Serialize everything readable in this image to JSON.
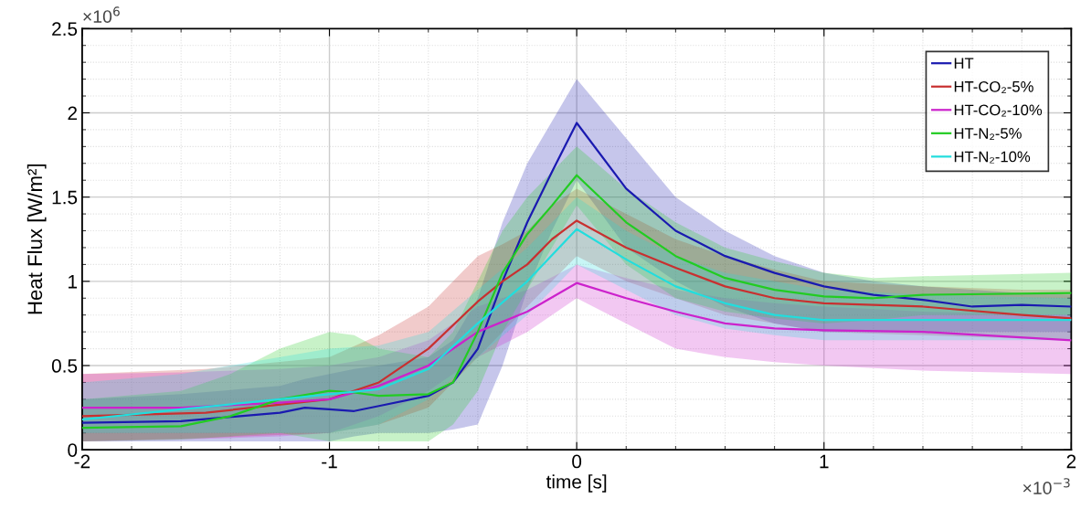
{
  "chart_data": {
    "type": "line",
    "xlabel": "time [s]",
    "ylabel": "Heat Flux [W/m²]",
    "xlim": [
      -2,
      2
    ],
    "xticks": [
      -2,
      -1,
      0,
      1,
      2
    ],
    "ylim": [
      0,
      2.5
    ],
    "yticks": [
      0,
      0.5,
      1,
      1.5,
      2,
      2.5
    ],
    "grid": true,
    "legend": "top right",
    "line_style": "solid",
    "marker": "none",
    "annotations": [
      "×10$^{6}$",
      "×10$^{−3}$"
    ],
    "series": [
      {
        "name": "HT",
        "color": "#1a1ab0",
        "x": [
          -2,
          -1.6,
          -1.2,
          -1.1,
          -1,
          -0.9,
          -0.8,
          -0.6,
          -0.5,
          -0.4,
          -0.3,
          -0.2,
          -0.1,
          0,
          0.2,
          0.4,
          0.6,
          0.8,
          1,
          1.2,
          1.4,
          1.6,
          1.8,
          2
        ],
        "values": [
          0.16,
          0.17,
          0.22,
          0.25,
          0.24,
          0.23,
          0.26,
          0.32,
          0.4,
          0.6,
          1.0,
          1.35,
          1.65,
          1.94,
          1.55,
          1.3,
          1.15,
          1.05,
          0.97,
          0.92,
          0.89,
          0.85,
          0.86,
          0.85
        ],
        "lower": [
          0.05,
          0.05,
          0.05,
          0.05,
          0.05,
          0.08,
          0.1,
          0.1,
          0.12,
          0.15,
          0.5,
          0.95,
          1.3,
          1.6,
          1.2,
          1.0,
          0.85,
          0.75,
          0.7,
          0.7,
          0.7,
          0.7,
          0.7,
          0.7
        ],
        "upper": [
          0.3,
          0.33,
          0.38,
          0.42,
          0.45,
          0.48,
          0.5,
          0.55,
          0.65,
          0.9,
          1.35,
          1.7,
          1.95,
          2.2,
          1.85,
          1.5,
          1.3,
          1.15,
          1.05,
          1.0,
          0.97,
          0.95,
          0.93,
          0.92
        ]
      },
      {
        "name": "HT-CO₂-5%",
        "color": "#c83030",
        "x": [
          -2,
          -1.5,
          -1,
          -0.8,
          -0.6,
          -0.4,
          -0.3,
          -0.2,
          -0.1,
          0,
          0.2,
          0.4,
          0.6,
          0.8,
          1,
          1.4,
          1.8,
          2
        ],
        "values": [
          0.2,
          0.22,
          0.3,
          0.4,
          0.6,
          0.88,
          1.0,
          1.1,
          1.25,
          1.36,
          1.2,
          1.08,
          0.97,
          0.9,
          0.87,
          0.85,
          0.8,
          0.78
        ],
        "lower": [
          0.05,
          0.07,
          0.1,
          0.15,
          0.25,
          0.55,
          0.7,
          0.85,
          1.0,
          1.15,
          1.0,
          0.9,
          0.8,
          0.75,
          0.7,
          0.68,
          0.66,
          0.65
        ],
        "upper": [
          0.45,
          0.48,
          0.55,
          0.68,
          0.85,
          1.15,
          1.22,
          1.3,
          1.45,
          1.55,
          1.4,
          1.25,
          1.15,
          1.07,
          1.0,
          0.97,
          0.95,
          0.95
        ]
      },
      {
        "name": "HT-CO₂-10%",
        "color": "#cc22cc",
        "x": [
          -2,
          -1.6,
          -1.2,
          -1,
          -0.8,
          -0.6,
          -0.4,
          -0.2,
          0,
          0.2,
          0.4,
          0.6,
          0.8,
          1,
          1.4,
          2
        ],
        "values": [
          0.25,
          0.25,
          0.28,
          0.3,
          0.38,
          0.5,
          0.7,
          0.82,
          0.99,
          0.9,
          0.82,
          0.75,
          0.72,
          0.71,
          0.7,
          0.65
        ],
        "lower": [
          0.05,
          0.06,
          0.08,
          0.1,
          0.2,
          0.35,
          0.55,
          0.7,
          0.9,
          0.75,
          0.6,
          0.55,
          0.52,
          0.5,
          0.47,
          0.45
        ],
        "upper": [
          0.45,
          0.46,
          0.48,
          0.5,
          0.55,
          0.65,
          0.85,
          0.95,
          1.1,
          1.02,
          0.95,
          0.9,
          0.87,
          0.85,
          0.82,
          0.8
        ]
      },
      {
        "name": "HT-N₂-5%",
        "color": "#22cc22",
        "x": [
          -2,
          -1.6,
          -1.4,
          -1.2,
          -1,
          -0.9,
          -0.8,
          -0.6,
          -0.5,
          -0.4,
          -0.3,
          -0.2,
          -0.1,
          0,
          0.2,
          0.4,
          0.6,
          0.8,
          1,
          1.2,
          1.4,
          2
        ],
        "values": [
          0.13,
          0.14,
          0.2,
          0.3,
          0.35,
          0.34,
          0.32,
          0.33,
          0.4,
          0.7,
          1.05,
          1.28,
          1.45,
          1.63,
          1.35,
          1.15,
          1.02,
          0.95,
          0.91,
          0.9,
          0.92,
          0.93
        ],
        "lower": [
          0.05,
          0.06,
          0.08,
          0.1,
          0.05,
          0.05,
          0.05,
          0.05,
          0.15,
          0.35,
          0.7,
          0.95,
          1.2,
          1.45,
          1.1,
          0.9,
          0.82,
          0.78,
          0.75,
          0.77,
          0.8,
          0.8
        ],
        "upper": [
          0.3,
          0.35,
          0.45,
          0.6,
          0.7,
          0.68,
          0.6,
          0.55,
          0.7,
          1.0,
          1.3,
          1.5,
          1.65,
          1.8,
          1.55,
          1.35,
          1.2,
          1.12,
          1.05,
          1.02,
          1.03,
          1.05
        ]
      },
      {
        "name": "HT-N₂-10%",
        "color": "#22dddd",
        "x": [
          -2,
          -1.6,
          -1.2,
          -1,
          -0.8,
          -0.6,
          -0.4,
          -0.2,
          0,
          0.2,
          0.4,
          0.6,
          0.8,
          1,
          1.4,
          2
        ],
        "values": [
          0.18,
          0.24,
          0.3,
          0.33,
          0.36,
          0.48,
          0.75,
          1.0,
          1.31,
          1.13,
          0.97,
          0.87,
          0.8,
          0.77,
          0.77,
          0.77
        ],
        "lower": [
          0.1,
          0.1,
          0.1,
          0.1,
          0.15,
          0.3,
          0.55,
          0.8,
          1.1,
          0.95,
          0.8,
          0.72,
          0.68,
          0.65,
          0.65,
          0.65
        ],
        "upper": [
          0.4,
          0.45,
          0.55,
          0.6,
          0.62,
          0.7,
          0.95,
          1.2,
          1.5,
          1.3,
          1.15,
          1.05,
          1.0,
          0.95,
          0.92,
          0.9
        ]
      }
    ]
  }
}
